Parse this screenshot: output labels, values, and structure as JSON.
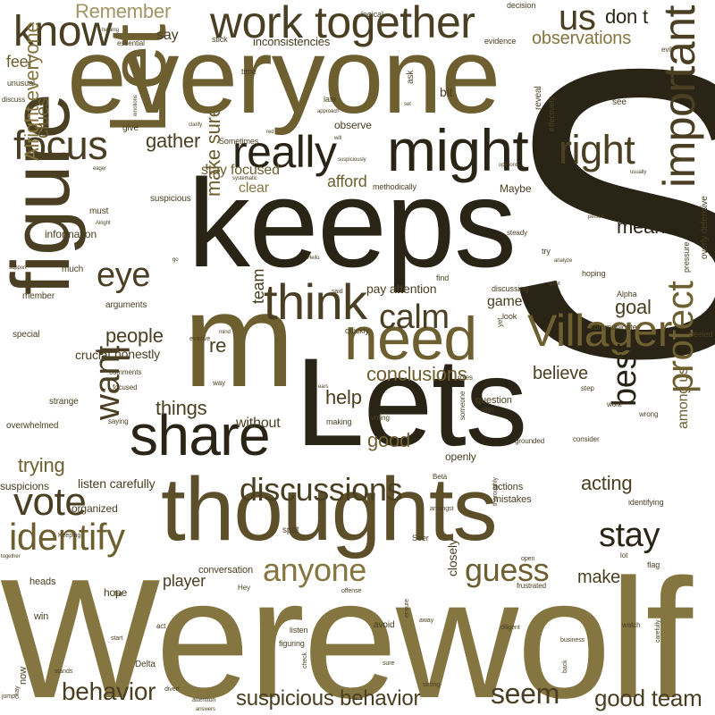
{
  "palette": {
    "background": "#ffffff",
    "dark": "#2a2416",
    "darkbrown": "#4a3f22",
    "brown": "#5c4f2a",
    "olive": "#6e5f30",
    "khaki": "#857540",
    "light": "#a39463",
    "pale": "#bfb38c"
  },
  "words": [
    {
      "text": "Werewolf",
      "weight": 0.99,
      "color": "khaki"
    },
    {
      "text": "keeps",
      "weight": 0.94,
      "color": "dark"
    },
    {
      "text": "Lets",
      "weight": 0.93,
      "color": "dark"
    },
    {
      "text": "S",
      "weight": 1.0,
      "color": "dark"
    },
    {
      "text": "everyone",
      "weight": 0.88,
      "color": "olive"
    },
    {
      "text": "thoughts",
      "weight": 0.85,
      "color": "brown"
    },
    {
      "text": "figure",
      "weight": 0.8,
      "color": "darkbrown"
    },
    {
      "text": "Let",
      "weight": 0.78,
      "color": "olive"
    },
    {
      "text": "m",
      "weight": 0.9,
      "color": "olive"
    },
    {
      "text": "need",
      "weight": 0.6,
      "color": "olive"
    },
    {
      "text": "might",
      "weight": 0.58,
      "color": "dark"
    },
    {
      "text": "work together",
      "weight": 0.5,
      "color": "darkbrown"
    },
    {
      "text": "know",
      "weight": 0.48,
      "color": "darkbrown"
    },
    {
      "text": "share",
      "weight": 0.6,
      "color": "dark"
    },
    {
      "text": "Villager",
      "weight": 0.55,
      "color": "olive"
    },
    {
      "text": "important",
      "weight": 0.5,
      "color": "darkbrown"
    },
    {
      "text": "think",
      "weight": 0.5,
      "color": "darkbrown"
    },
    {
      "text": "really",
      "weight": 0.45,
      "color": "dark"
    },
    {
      "text": "right",
      "weight": 0.44,
      "color": "darkbrown"
    },
    {
      "text": "focus",
      "weight": 0.44,
      "color": "darkbrown"
    },
    {
      "text": "us",
      "weight": 0.4,
      "color": "darkbrown"
    },
    {
      "text": "protect",
      "weight": 0.45,
      "color": "olive"
    },
    {
      "text": "identify",
      "weight": 0.43,
      "color": "olive"
    },
    {
      "text": "vote",
      "weight": 0.42,
      "color": "darkbrown"
    },
    {
      "text": "discussions",
      "weight": 0.38,
      "color": "darkbrown"
    },
    {
      "text": "anyone",
      "weight": 0.38,
      "color": "khaki"
    },
    {
      "text": "guess",
      "weight": 0.37,
      "color": "olive"
    },
    {
      "text": "stay",
      "weight": 0.36,
      "color": "dark"
    },
    {
      "text": "calm",
      "weight": 0.36,
      "color": "darkbrown"
    },
    {
      "text": "eye",
      "weight": 0.35,
      "color": "darkbrown"
    },
    {
      "text": "want",
      "weight": 0.35,
      "color": "darkbrown"
    },
    {
      "text": "best",
      "weight": 0.35,
      "color": "dark"
    },
    {
      "text": "ll",
      "weight": 0.32,
      "color": "darkbrown"
    },
    {
      "text": "behavior",
      "weight": 0.33,
      "color": "darkbrown"
    },
    {
      "text": "seem",
      "weight": 0.33,
      "color": "darkbrown"
    },
    {
      "text": "suspicious behavior",
      "weight": 0.3,
      "color": "darkbrown"
    },
    {
      "text": "good team",
      "weight": 0.28,
      "color": "darkbrown"
    },
    {
      "text": "don t",
      "weight": 0.27,
      "color": "dark"
    },
    {
      "text": "gather",
      "weight": 0.26,
      "color": "darkbrown"
    },
    {
      "text": "trying",
      "weight": 0.26,
      "color": "olive"
    },
    {
      "text": "conclusions",
      "weight": 0.25,
      "color": "olive"
    },
    {
      "text": "acting",
      "weight": 0.25,
      "color": "darkbrown"
    },
    {
      "text": "make sure",
      "weight": 0.24,
      "color": "olive"
    },
    {
      "text": "people",
      "weight": 0.24,
      "color": "darkbrown"
    },
    {
      "text": "Alright everyone",
      "weight": 0.23,
      "color": "khaki"
    },
    {
      "text": "Remember",
      "weight": 0.22,
      "color": "light"
    },
    {
      "text": "observations",
      "weight": 0.22,
      "color": "khaki"
    },
    {
      "text": "mean",
      "weight": 0.24,
      "color": "dark"
    },
    {
      "text": "goal",
      "weight": 0.24,
      "color": "darkbrown"
    },
    {
      "text": "re",
      "weight": 0.26,
      "color": "darkbrown"
    },
    {
      "text": "help",
      "weight": 0.24,
      "color": "darkbrown"
    },
    {
      "text": "things",
      "weight": 0.24,
      "color": "darkbrown"
    },
    {
      "text": "good",
      "weight": 0.24,
      "color": "olive"
    },
    {
      "text": "believe",
      "weight": 0.22,
      "color": "darkbrown"
    },
    {
      "text": "make",
      "weight": 0.22,
      "color": "darkbrown"
    },
    {
      "text": "player",
      "weight": 0.2,
      "color": "darkbrown"
    },
    {
      "text": "afford",
      "weight": 0.2,
      "color": "olive"
    },
    {
      "text": "clear",
      "weight": 0.2,
      "color": "khaki"
    },
    {
      "text": "clues",
      "weight": 0.2,
      "color": "olive"
    },
    {
      "text": "feel",
      "weight": 0.2,
      "color": "olive"
    },
    {
      "text": "say",
      "weight": 0.18,
      "color": "darkbrown"
    },
    {
      "text": "team",
      "weight": 0.2,
      "color": "darkbrown"
    },
    {
      "text": "game",
      "weight": 0.18,
      "color": "darkbrown"
    },
    {
      "text": "without",
      "weight": 0.18,
      "color": "darkbrown"
    },
    {
      "text": "among us",
      "weight": 0.18,
      "color": "olive"
    },
    {
      "text": "listen carefully",
      "weight": 0.16,
      "color": "darkbrown"
    },
    {
      "text": "pay attention",
      "weight": 0.15,
      "color": "darkbrown"
    },
    {
      "text": "stay focused",
      "weight": 0.15,
      "color": "olive"
    },
    {
      "text": "inconsistencies",
      "weight": 0.14,
      "color": "darkbrown"
    },
    {
      "text": "bit",
      "weight": 0.15,
      "color": "darkbrown"
    },
    {
      "text": "honestly",
      "weight": 0.14,
      "color": "darkbrown"
    },
    {
      "text": "crucial",
      "weight": 0.13,
      "color": "darkbrown"
    },
    {
      "text": "organized",
      "weight": 0.13,
      "color": "darkbrown"
    },
    {
      "text": "information",
      "weight": 0.13,
      "color": "darkbrown"
    },
    {
      "text": "suspicions",
      "weight": 0.13,
      "color": "darkbrown"
    },
    {
      "text": "observe",
      "weight": 0.13,
      "color": "darkbrown"
    },
    {
      "text": "Maybe",
      "weight": 0.12,
      "color": "darkbrown"
    },
    {
      "text": "hope",
      "weight": 0.12,
      "color": "darkbrown"
    },
    {
      "text": "conversation",
      "weight": 0.12,
      "color": "darkbrown"
    },
    {
      "text": "closely",
      "weight": 0.13,
      "color": "darkbrown"
    },
    {
      "text": "now",
      "weight": 0.11,
      "color": "darkbrown"
    },
    {
      "text": "win",
      "weight": 0.11,
      "color": "darkbrown"
    },
    {
      "text": "heads",
      "weight": 0.11,
      "color": "darkbrown"
    },
    {
      "text": "question",
      "weight": 0.11,
      "color": "darkbrown"
    },
    {
      "text": "openly",
      "weight": 0.12,
      "color": "darkbrown"
    },
    {
      "text": "discussing",
      "weight": 0.11,
      "color": "darkbrown"
    },
    {
      "text": "identifying",
      "weight": 0.11,
      "color": "darkbrown"
    },
    {
      "text": "spot",
      "weight": 0.11,
      "color": "darkbrown"
    },
    {
      "text": "Seer",
      "weight": 0.11,
      "color": "darkbrown"
    },
    {
      "text": "flag",
      "weight": 0.11,
      "color": "darkbrown"
    },
    {
      "text": "actions",
      "weight": 0.11,
      "color": "darkbrown"
    },
    {
      "text": "mistakes",
      "weight": 0.11,
      "color": "darkbrown"
    },
    {
      "text": "listen",
      "weight": 0.11,
      "color": "darkbrown"
    },
    {
      "text": "avoid",
      "weight": 0.11,
      "color": "darkbrown"
    },
    {
      "text": "Delta",
      "weight": 0.11,
      "color": "darkbrown"
    },
    {
      "text": "figuring",
      "weight": 0.1,
      "color": "darkbrown"
    },
    {
      "text": "strange",
      "weight": 0.1,
      "color": "darkbrown"
    },
    {
      "text": "overwhelmed",
      "weight": 0.1,
      "color": "darkbrown"
    },
    {
      "text": "special",
      "weight": 0.1,
      "color": "darkbrown"
    },
    {
      "text": "arguments",
      "weight": 0.1,
      "color": "darkbrown"
    },
    {
      "text": "member",
      "weight": 0.1,
      "color": "darkbrown"
    },
    {
      "text": "much",
      "weight": 0.1,
      "color": "darkbrown"
    },
    {
      "text": "must",
      "weight": 0.1,
      "color": "darkbrown"
    },
    {
      "text": "suspicious",
      "weight": 0.1,
      "color": "darkbrown"
    },
    {
      "text": "methodically",
      "weight": 0.09,
      "color": "darkbrown"
    },
    {
      "text": "unusual",
      "weight": 0.09,
      "color": "darkbrown"
    },
    {
      "text": "discuss",
      "weight": 0.08,
      "color": "darkbrown"
    },
    {
      "text": "give",
      "weight": 0.09,
      "color": "darkbrown"
    },
    {
      "text": "Sometimes",
      "weight": 0.09,
      "color": "darkbrown"
    },
    {
      "text": "time",
      "weight": 0.08,
      "color": "darkbrown"
    },
    {
      "text": "late",
      "weight": 0.09,
      "color": "darkbrown"
    },
    {
      "text": "ask",
      "weight": 0.09,
      "color": "darkbrown"
    },
    {
      "text": "reveal",
      "weight": 0.09,
      "color": "darkbrown"
    },
    {
      "text": "see",
      "weight": 0.09,
      "color": "darkbrown"
    },
    {
      "text": "evidence",
      "weight": 0.09,
      "color": "darkbrown"
    },
    {
      "text": "decision",
      "weight": 0.08,
      "color": "darkbrown"
    },
    {
      "text": "logical",
      "weight": 0.08,
      "color": "darkbrown"
    },
    {
      "text": "stick",
      "weight": 0.08,
      "color": "darkbrown"
    },
    {
      "text": "essential",
      "weight": 0.07,
      "color": "darkbrown"
    },
    {
      "text": "evil",
      "weight": 0.08,
      "color": "darkbrown"
    },
    {
      "text": "effectively",
      "weight": 0.08,
      "color": "darkbrown"
    },
    {
      "text": "peeled",
      "weight": 0.09,
      "color": "darkbrown"
    },
    {
      "text": "overly defensive",
      "weight": 0.08,
      "color": "darkbrown"
    },
    {
      "text": "pressure",
      "weight": 0.08,
      "color": "darkbrown"
    },
    {
      "text": "try",
      "weight": 0.08,
      "color": "darkbrown"
    },
    {
      "text": "steady",
      "weight": 0.08,
      "color": "darkbrown"
    },
    {
      "text": "hoping",
      "weight": 0.08,
      "color": "darkbrown"
    },
    {
      "text": "Alpha",
      "weight": 0.08,
      "color": "darkbrown"
    },
    {
      "text": "communicate",
      "weight": 0.08,
      "color": "darkbrown"
    },
    {
      "text": "find",
      "weight": 0.08,
      "color": "darkbrown"
    },
    {
      "text": "look",
      "weight": 0.08,
      "color": "darkbrown"
    },
    {
      "text": "yet",
      "weight": 0.08,
      "color": "darkbrown"
    },
    {
      "text": "sign",
      "weight": 0.08,
      "color": "darkbrown"
    },
    {
      "text": "step",
      "weight": 0.08,
      "color": "darkbrown"
    },
    {
      "text": "work",
      "weight": 0.08,
      "color": "darkbrown"
    },
    {
      "text": "wrong",
      "weight": 0.08,
      "color": "darkbrown"
    },
    {
      "text": "roles",
      "weight": 0.08,
      "color": "darkbrown"
    },
    {
      "text": "way",
      "weight": 0.08,
      "color": "darkbrown"
    },
    {
      "text": "making",
      "weight": 0.08,
      "color": "darkbrown"
    },
    {
      "text": "voting",
      "weight": 0.08,
      "color": "darkbrown"
    },
    {
      "text": "someone",
      "weight": 0.08,
      "color": "darkbrown"
    },
    {
      "text": "Beta",
      "weight": 0.08,
      "color": "darkbrown"
    },
    {
      "text": "grounded",
      "weight": 0.08,
      "color": "darkbrown"
    },
    {
      "text": "consider",
      "weight": 0.07,
      "color": "darkbrown"
    },
    {
      "text": "saying",
      "weight": 0.08,
      "color": "darkbrown"
    },
    {
      "text": "comments",
      "weight": 0.07,
      "color": "darkbrown"
    },
    {
      "text": "focused",
      "weight": 0.07,
      "color": "darkbrown"
    },
    {
      "text": "quickly",
      "weight": 0.08,
      "color": "darkbrown"
    },
    {
      "text": "evasive",
      "weight": 0.07,
      "color": "darkbrown"
    },
    {
      "text": "said",
      "weight": 0.07,
      "color": "darkbrown"
    },
    {
      "text": "amongst",
      "weight": 0.07,
      "color": "darkbrown"
    },
    {
      "text": "thoroughly",
      "weight": 0.07,
      "color": "darkbrown"
    },
    {
      "text": "open",
      "weight": 0.07,
      "color": "darkbrown"
    },
    {
      "text": "Keeping",
      "weight": 0.07,
      "color": "darkbrown"
    },
    {
      "text": "together",
      "weight": 0.06,
      "color": "darkbrown"
    },
    {
      "text": "far",
      "weight": 0.07,
      "color": "darkbrown"
    },
    {
      "text": "Hey",
      "weight": 0.08,
      "color": "darkbrown"
    },
    {
      "text": "offense",
      "weight": 0.07,
      "color": "darkbrown"
    },
    {
      "text": "lot",
      "weight": 0.07,
      "color": "darkbrown"
    },
    {
      "text": "frustrated",
      "weight": 0.08,
      "color": "darkbrown"
    },
    {
      "text": "watch",
      "weight": 0.08,
      "color": "darkbrown"
    },
    {
      "text": "act",
      "weight": 0.08,
      "color": "darkbrown"
    },
    {
      "text": "away",
      "weight": 0.07,
      "color": "darkbrown"
    },
    {
      "text": "diligent",
      "weight": 0.07,
      "color": "darkbrown"
    },
    {
      "text": "start",
      "weight": 0.07,
      "color": "darkbrown"
    },
    {
      "text": "ensure",
      "weight": 0.07,
      "color": "darkbrown"
    },
    {
      "text": "business",
      "weight": 0.07,
      "color": "darkbrown"
    },
    {
      "text": "carefully",
      "weight": 0.07,
      "color": "darkbrown"
    },
    {
      "text": "back",
      "weight": 0.07,
      "color": "darkbrown"
    },
    {
      "text": "check",
      "weight": 0.07,
      "color": "darkbrown"
    },
    {
      "text": "sure",
      "weight": 0.07,
      "color": "darkbrown"
    },
    {
      "text": "stands",
      "weight": 0.07,
      "color": "darkbrown"
    },
    {
      "text": "divert",
      "weight": 0.07,
      "color": "darkbrown"
    },
    {
      "text": "strong",
      "weight": 0.07,
      "color": "darkbrown"
    },
    {
      "text": "jump",
      "weight": 0.07,
      "color": "darkbrown"
    },
    {
      "text": "okay",
      "weight": 0.07,
      "color": "darkbrown"
    },
    {
      "text": "attention",
      "weight": 0.06,
      "color": "darkbrown"
    },
    {
      "text": "answers",
      "weight": 0.06,
      "color": "darkbrown"
    },
    {
      "text": "helping",
      "weight": 0.06,
      "color": "darkbrown"
    },
    {
      "text": "approach",
      "weight": 0.06,
      "color": "darkbrown"
    },
    {
      "text": "set",
      "weight": 0.06,
      "color": "darkbrown"
    },
    {
      "text": "emotions",
      "weight": 0.06,
      "color": "darkbrown"
    },
    {
      "text": "clarify",
      "weight": 0.06,
      "color": "darkbrown"
    },
    {
      "text": "red",
      "weight": 0.06,
      "color": "darkbrown"
    },
    {
      "text": "will",
      "weight": 0.06,
      "color": "darkbrown"
    },
    {
      "text": "suspiciously",
      "weight": 0.06,
      "color": "darkbrown"
    },
    {
      "text": "systematic",
      "weight": 0.06,
      "color": "darkbrown"
    },
    {
      "text": "opinions",
      "weight": 0.06,
      "color": "darkbrown"
    },
    {
      "text": "eager",
      "weight": 0.06,
      "color": "darkbrown"
    },
    {
      "text": "usually",
      "weight": 0.06,
      "color": "darkbrown"
    },
    {
      "text": "person",
      "weight": 0.06,
      "color": "darkbrown"
    },
    {
      "text": "quiet",
      "weight": 0.06,
      "color": "darkbrown"
    },
    {
      "text": "analyze",
      "weight": 0.06,
      "color": "darkbrown"
    },
    {
      "text": "Hello",
      "weight": 0.06,
      "color": "darkbrown"
    },
    {
      "text": "go",
      "weight": 0.06,
      "color": "darkbrown"
    },
    {
      "text": "support",
      "weight": 0.06,
      "color": "darkbrown"
    },
    {
      "text": "mind",
      "weight": 0.06,
      "color": "darkbrown"
    },
    {
      "text": "ears",
      "weight": 0.06,
      "color": "darkbrown"
    },
    {
      "text": "Alright",
      "weight": 0.06,
      "color": "darkbrown"
    },
    {
      "text": "t",
      "weight": 0.07,
      "color": "darkbrown"
    }
  ]
}
